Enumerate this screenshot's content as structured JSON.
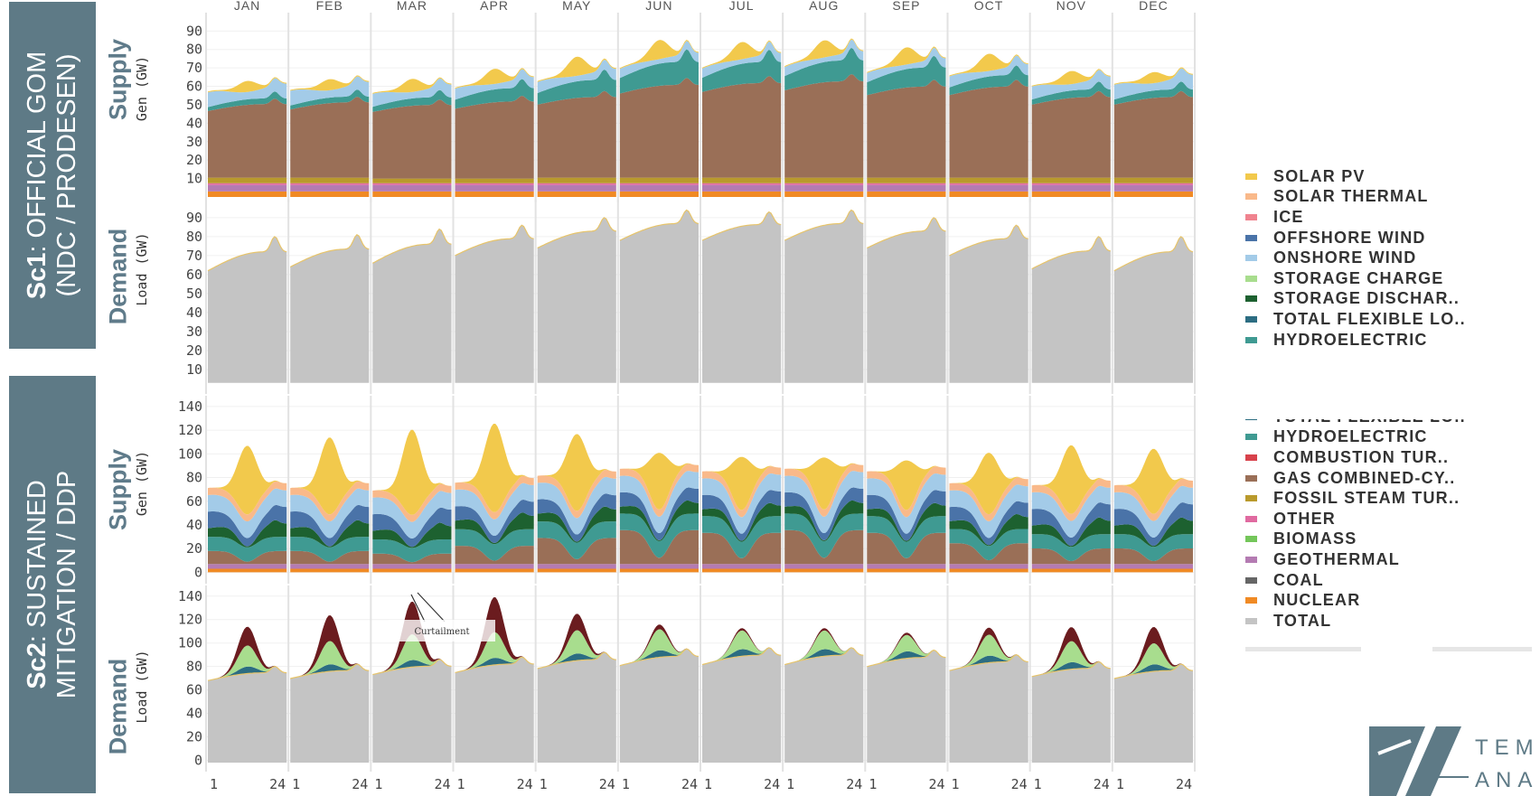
{
  "scenarios": [
    {
      "code": "Sc1",
      "name_line1": ": OFFICIAL GOM",
      "name_line2": "(NDC / PRODESEN)"
    },
    {
      "code": "Sc2",
      "name_line1": ": SUSTAINED",
      "name_line2": "MITIGATION / DDP"
    }
  ],
  "panel_titles": {
    "supply": "Supply",
    "demand": "Demand"
  },
  "axis_titles": {
    "gen": "Gen (GW)",
    "load": "Load (GW)"
  },
  "annotation": "Curtailment",
  "logo_text": {
    "line1": "TEM",
    "line2": "ANA"
  },
  "legend_panels": [
    {
      "items": [
        {
          "label": "SOLAR PV",
          "color": "#f2c94c"
        },
        {
          "label": "SOLAR THERMAL",
          "color": "#f9b98a"
        },
        {
          "label": "ICE",
          "color": "#f0838f"
        },
        {
          "label": "OFFSHORE WIND",
          "color": "#4a73a8"
        },
        {
          "label": "ONSHORE WIND",
          "color": "#a3cbe8"
        },
        {
          "label": "STORAGE CHARGE",
          "color": "#a8dd8e"
        },
        {
          "label": "STORAGE DISCHAR..",
          "color": "#1d6130"
        },
        {
          "label": "TOTAL FLEXIBLE LO..",
          "color": "#2c6d82"
        },
        {
          "label": "HYDROELECTRIC",
          "color": "#3f9a92"
        }
      ]
    },
    {
      "items": [
        {
          "label": "TOTAL FLEXIBLE LO..",
          "color": "#2c6d82"
        },
        {
          "label": "HYDROELECTRIC",
          "color": "#3f9a92"
        },
        {
          "label": "COMBUSTION TUR..",
          "color": "#d8424c"
        },
        {
          "label": "GAS COMBINED-CY..",
          "color": "#9a6f57"
        },
        {
          "label": "FOSSIL STEAM TUR..",
          "color": "#b99a2c"
        },
        {
          "label": "OTHER",
          "color": "#e06aa0"
        },
        {
          "label": "BIOMASS",
          "color": "#74c65a"
        },
        {
          "label": "GEOTHERMAL",
          "color": "#b47bb2"
        },
        {
          "label": "COAL",
          "color": "#666666"
        },
        {
          "label": "NUCLEAR",
          "color": "#f08a24"
        },
        {
          "label": "TOTAL",
          "color": "#c4c4c4"
        }
      ]
    }
  ],
  "chart_data": [
    {
      "type": "area",
      "title": "Supply",
      "scenario": "Sc1",
      "ylabel": "Gen (GW)",
      "months": [
        "JAN",
        "FEB",
        "MAR",
        "APR",
        "MAY",
        "JUN",
        "JUL",
        "AUG",
        "SEP",
        "OCT",
        "NOV",
        "DEC"
      ],
      "yticks": [
        10,
        20,
        30,
        40,
        50,
        60,
        70,
        80,
        90
      ],
      "ylim": [
        0,
        98
      ],
      "series": [
        {
          "name": "NUCLEAR",
          "color": "#f08a24",
          "values_by_month": [
            3,
            3,
            3,
            3,
            3,
            3,
            3,
            3,
            3,
            3,
            3,
            3
          ]
        },
        {
          "name": "GEOTHERMAL",
          "color": "#b47bb2",
          "values_by_month": [
            3.5,
            3.5,
            3.5,
            3.5,
            3.5,
            3.5,
            3.5,
            3.5,
            3.5,
            3.5,
            3.5,
            3.5
          ]
        },
        {
          "name": "OTHER",
          "color": "#e06aa0",
          "values_by_month": [
            1,
            1,
            1,
            1,
            1,
            1,
            1,
            1,
            1,
            1,
            1,
            1
          ]
        },
        {
          "name": "FOSSIL STEAM TUR..",
          "color": "#b99a2c",
          "values_by_month": [
            3,
            3,
            2.5,
            2.5,
            3,
            3,
            3,
            3,
            3,
            3,
            3,
            3
          ]
        },
        {
          "name": "GAS COMBINED-CY..",
          "color": "#9a6f57",
          "values_by_month": [
            42,
            43,
            42,
            44,
            46,
            53,
            54,
            55,
            52,
            52,
            46,
            46
          ]
        },
        {
          "name": "HYDROELECTRIC",
          "color": "#3f9a92",
          "values_by_month": [
            3,
            3,
            4,
            7,
            9,
            12,
            11,
            11,
            10,
            6,
            4,
            4
          ]
        },
        {
          "name": "ONSHORE WIND",
          "color": "#a3cbe8",
          "values_by_month": [
            8,
            8,
            7,
            6,
            6,
            5,
            5,
            5,
            5,
            6,
            7,
            8
          ]
        },
        {
          "name": "SOLAR PV",
          "color": "#f2c94c",
          "values_by_month": [
            5,
            5,
            6,
            7,
            9,
            9,
            8,
            8,
            8,
            8,
            6,
            5
          ]
        }
      ]
    },
    {
      "type": "area",
      "title": "Demand",
      "scenario": "Sc1",
      "ylabel": "Load (GW)",
      "months": [
        "JAN",
        "FEB",
        "MAR",
        "APR",
        "MAY",
        "JUN",
        "JUL",
        "AUG",
        "SEP",
        "OCT",
        "NOV",
        "DEC"
      ],
      "yticks": [
        10,
        20,
        30,
        40,
        50,
        60,
        70,
        80,
        90
      ],
      "ylim": [
        0,
        98
      ],
      "series": [
        {
          "name": "TOTAL",
          "color": "#c4c4c4",
          "peak_by_month": [
            80,
            81,
            84,
            86,
            90,
            94,
            93,
            94,
            90,
            86,
            80,
            80
          ],
          "min_by_month": [
            62,
            64,
            66,
            70,
            74,
            78,
            78,
            78,
            74,
            70,
            63,
            62
          ]
        }
      ]
    },
    {
      "type": "area",
      "title": "Supply",
      "scenario": "Sc2",
      "ylabel": "Gen (GW)",
      "months": [
        "JAN",
        "FEB",
        "MAR",
        "APR",
        "MAY",
        "JUN",
        "JUL",
        "AUG",
        "SEP",
        "OCT",
        "NOV",
        "DEC"
      ],
      "xticks": [
        1,
        24
      ],
      "yticks": [
        0,
        20,
        40,
        60,
        80,
        100,
        120,
        140
      ],
      "ylim": [
        -5,
        146
      ],
      "series": [
        {
          "name": "NUCLEAR",
          "color": "#f08a24",
          "values_by_month": [
            3,
            3,
            3,
            3,
            3,
            3,
            3,
            3,
            3,
            3,
            3,
            3
          ]
        },
        {
          "name": "GEOTHERMAL",
          "color": "#b47bb2",
          "values_by_month": [
            4,
            4,
            4,
            4,
            4,
            4,
            4,
            4,
            4,
            4,
            4,
            4
          ]
        },
        {
          "name": "GAS COMBINED-CY..",
          "color": "#9a6f57",
          "values_by_month": [
            10,
            10,
            8,
            14,
            20,
            26,
            24,
            26,
            24,
            16,
            12,
            12
          ]
        },
        {
          "name": "HYDROELECTRIC",
          "color": "#3f9a92",
          "values_by_month": [
            12,
            12,
            12,
            14,
            14,
            14,
            14,
            14,
            14,
            12,
            12,
            12
          ]
        },
        {
          "name": "STORAGE DISCHAR..",
          "color": "#1d6130",
          "values_by_month": [
            10,
            10,
            10,
            10,
            9,
            8,
            8,
            8,
            8,
            9,
            10,
            10
          ]
        },
        {
          "name": "OFFSHORE WIND",
          "color": "#4a73a8",
          "values_by_month": [
            14,
            14,
            14,
            12,
            12,
            12,
            12,
            12,
            12,
            12,
            14,
            14
          ]
        },
        {
          "name": "ONSHORE WIND",
          "color": "#a3cbe8",
          "values_by_month": [
            14,
            14,
            14,
            14,
            14,
            14,
            14,
            14,
            14,
            14,
            14,
            14
          ]
        },
        {
          "name": "SOLAR THERMAL",
          "color": "#f9b98a",
          "values_by_month": [
            6,
            6,
            6,
            6,
            6,
            6,
            6,
            6,
            6,
            6,
            6,
            6
          ]
        },
        {
          "name": "SOLAR PV",
          "color": "#f2c94c",
          "peak_by_month": [
            58,
            65,
            72,
            75,
            65,
            48,
            45,
            44,
            42,
            52,
            58,
            55
          ]
        }
      ]
    },
    {
      "type": "area",
      "title": "Demand",
      "scenario": "Sc2",
      "ylabel": "Load (GW)",
      "months": [
        "JAN",
        "FEB",
        "MAR",
        "APR",
        "MAY",
        "JUN",
        "JUL",
        "AUG",
        "SEP",
        "OCT",
        "NOV",
        "DEC"
      ],
      "xticks": [
        1,
        24
      ],
      "yticks": [
        0,
        20,
        40,
        60,
        80,
        100,
        120,
        140
      ],
      "ylim": [
        -5,
        146
      ],
      "series": [
        {
          "name": "TOTAL",
          "color": "#c4c4c4",
          "peak_by_month": [
            80,
            82,
            86,
            88,
            92,
            95,
            96,
            96,
            94,
            90,
            84,
            82
          ]
        },
        {
          "name": "TOTAL FLEXIBLE LO..",
          "color": "#2c6d82",
          "values_by_month": [
            6,
            6,
            6,
            6,
            6,
            6,
            6,
            6,
            6,
            6,
            6,
            6
          ]
        },
        {
          "name": "STORAGE CHARGE",
          "color": "#a8dd8e",
          "values_by_month": [
            18,
            20,
            22,
            22,
            20,
            18,
            16,
            16,
            14,
            18,
            18,
            18
          ]
        },
        {
          "name": "CURTAILMENT",
          "color": "#6b1c1f",
          "values_by_month": [
            16,
            22,
            28,
            30,
            14,
            4,
            2,
            2,
            2,
            6,
            12,
            14
          ]
        }
      ]
    }
  ]
}
